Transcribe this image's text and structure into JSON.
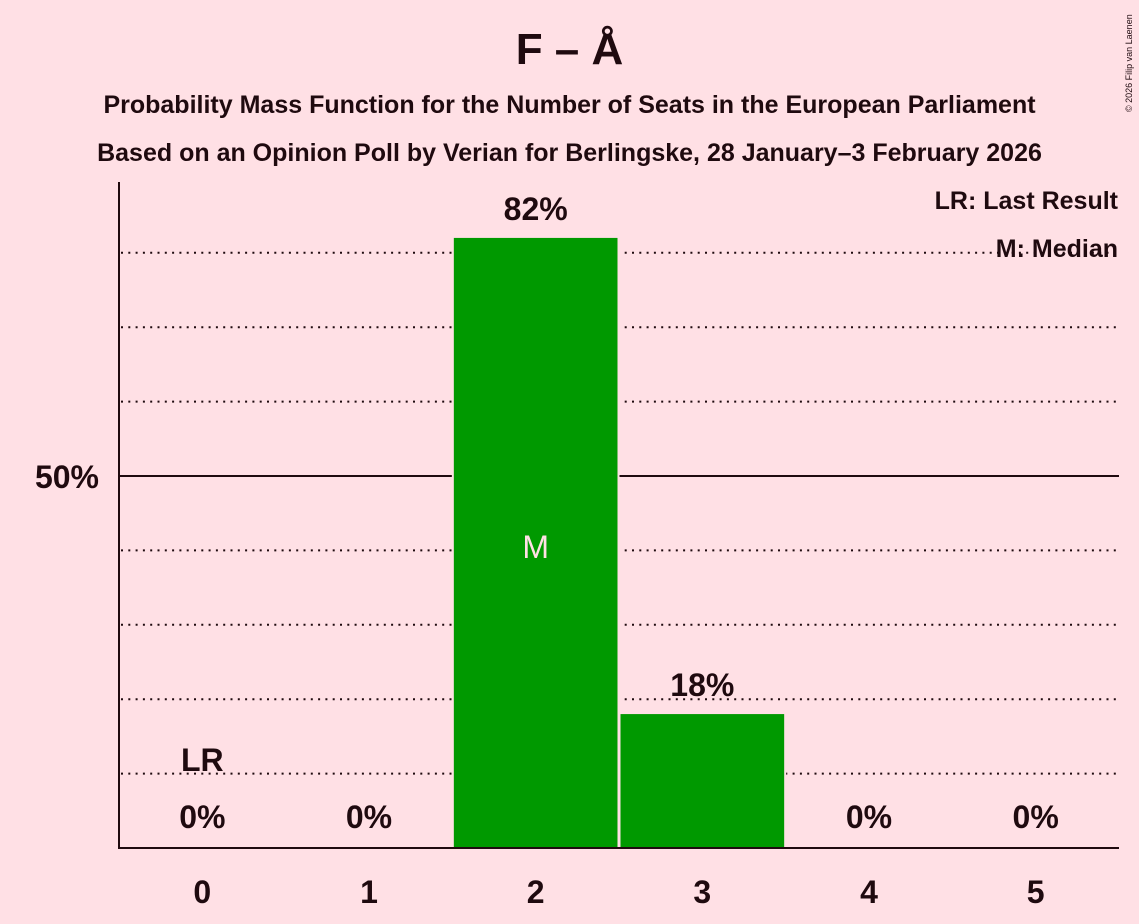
{
  "header": {
    "title": "F – Å",
    "subtitle_line1": "Probability Mass Function for the Number of Seats in the European Parliament",
    "subtitle_line2": "Based on an Opinion Poll by Verian for Berlingske, 28 January–3 February 2026",
    "copyright": "© 2026 Filip van Laenen"
  },
  "legend": {
    "lr": "LR: Last Result",
    "m": "M: Median"
  },
  "colors": {
    "background": "#FFE0E5",
    "bar": "#009900",
    "text": "#1F0A0F",
    "median_marker": "#FFE0E5"
  },
  "chart_data": {
    "type": "bar",
    "title": "F – Å",
    "subtitle": [
      "Probability Mass Function for the Number of Seats in the European Parliament",
      "Based on an Opinion Poll by Verian for Berlingske, 28 January–3 February 2026"
    ],
    "xlabel": "",
    "ylabel": "",
    "categories": [
      "0",
      "1",
      "2",
      "3",
      "4",
      "5"
    ],
    "values": [
      0,
      0,
      82,
      18,
      0,
      0
    ],
    "value_labels": [
      "0%",
      "0%",
      "82%",
      "18%",
      "0%",
      "0%"
    ],
    "ylim": [
      0,
      100
    ],
    "yticks_labeled": [
      {
        "value": 50,
        "label": "50%"
      }
    ],
    "gridlines": {
      "dotted": [
        10,
        20,
        30,
        40,
        60,
        70,
        80
      ],
      "solid": [
        50
      ]
    },
    "annotations": [
      {
        "category": "0",
        "text": "LR",
        "meaning": "Last Result"
      },
      {
        "category": "2",
        "text": "M",
        "meaning": "Median"
      }
    ],
    "legend": [
      "LR: Last Result",
      "M: Median"
    ],
    "legend_position": "top-right"
  }
}
